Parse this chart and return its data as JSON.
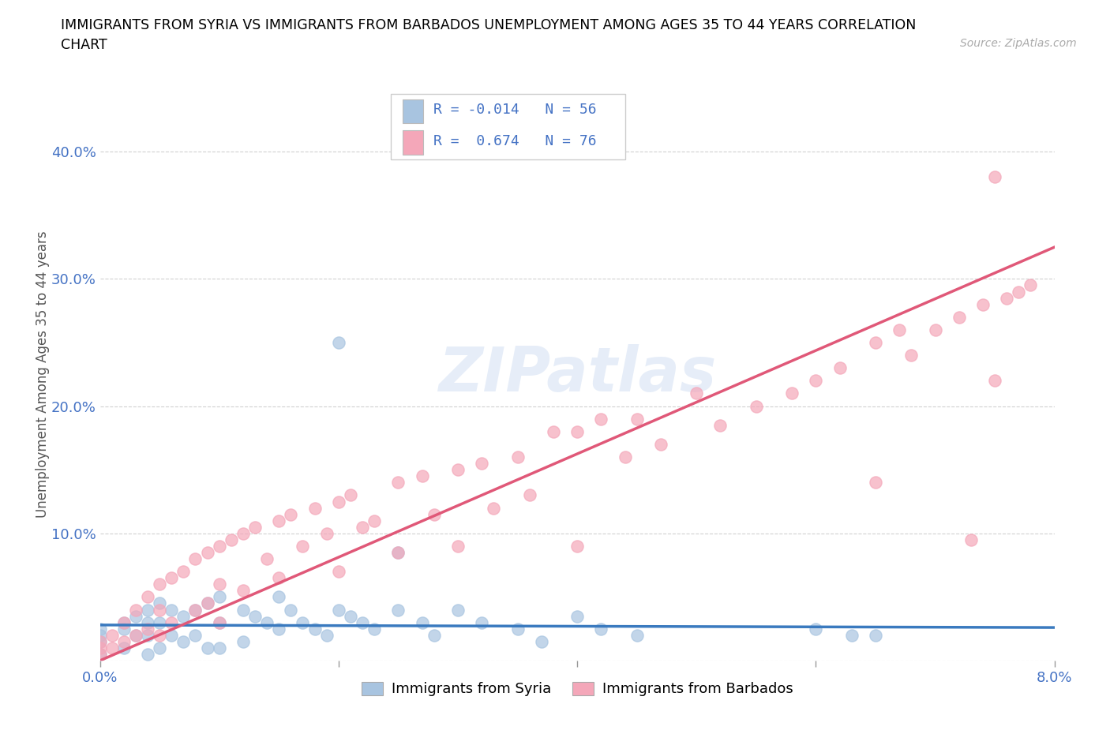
{
  "title_line1": "IMMIGRANTS FROM SYRIA VS IMMIGRANTS FROM BARBADOS UNEMPLOYMENT AMONG AGES 35 TO 44 YEARS CORRELATION",
  "title_line2": "CHART",
  "source": "Source: ZipAtlas.com",
  "ylabel": "Unemployment Among Ages 35 to 44 years",
  "xlim": [
    0.0,
    0.08
  ],
  "ylim": [
    0.0,
    0.45
  ],
  "syria_color": "#a8c4e0",
  "barbados_color": "#f4a7b9",
  "syria_line_color": "#3a7abf",
  "barbados_line_color": "#e05878",
  "syria_R": -0.014,
  "syria_N": 56,
  "barbados_R": 0.674,
  "barbados_N": 76,
  "watermark": "ZIPatlas",
  "legend_label_syria": "Immigrants from Syria",
  "legend_label_barbados": "Immigrants from Barbados",
  "background_color": "#ffffff",
  "grid_color": "#cccccc",
  "axis_color": "#4472c4",
  "title_color": "#000000",
  "barbados_line_y0": 0.0,
  "barbados_line_y1": 0.325,
  "syria_line_y0": 0.028,
  "syria_line_y1": 0.026,
  "syria_x": [
    0.0,
    0.0,
    0.0,
    0.0,
    0.002,
    0.002,
    0.002,
    0.003,
    0.003,
    0.004,
    0.004,
    0.004,
    0.004,
    0.005,
    0.005,
    0.005,
    0.006,
    0.006,
    0.007,
    0.007,
    0.008,
    0.008,
    0.009,
    0.009,
    0.01,
    0.01,
    0.01,
    0.012,
    0.012,
    0.013,
    0.014,
    0.015,
    0.015,
    0.016,
    0.017,
    0.018,
    0.019,
    0.02,
    0.02,
    0.021,
    0.022,
    0.023,
    0.025,
    0.025,
    0.027,
    0.028,
    0.03,
    0.032,
    0.035,
    0.037,
    0.04,
    0.042,
    0.045,
    0.06,
    0.063,
    0.065
  ],
  "syria_y": [
    0.025,
    0.02,
    0.015,
    0.005,
    0.03,
    0.025,
    0.01,
    0.035,
    0.02,
    0.04,
    0.03,
    0.02,
    0.005,
    0.045,
    0.03,
    0.01,
    0.04,
    0.02,
    0.035,
    0.015,
    0.04,
    0.02,
    0.045,
    0.01,
    0.05,
    0.03,
    0.01,
    0.04,
    0.015,
    0.035,
    0.03,
    0.05,
    0.025,
    0.04,
    0.03,
    0.025,
    0.02,
    0.25,
    0.04,
    0.035,
    0.03,
    0.025,
    0.085,
    0.04,
    0.03,
    0.02,
    0.04,
    0.03,
    0.025,
    0.015,
    0.035,
    0.025,
    0.02,
    0.025,
    0.02,
    0.02
  ],
  "barbados_x": [
    0.0,
    0.0,
    0.0,
    0.001,
    0.001,
    0.002,
    0.002,
    0.003,
    0.003,
    0.004,
    0.004,
    0.005,
    0.005,
    0.005,
    0.006,
    0.006,
    0.007,
    0.008,
    0.008,
    0.009,
    0.009,
    0.01,
    0.01,
    0.01,
    0.011,
    0.012,
    0.012,
    0.013,
    0.014,
    0.015,
    0.015,
    0.016,
    0.017,
    0.018,
    0.019,
    0.02,
    0.02,
    0.021,
    0.022,
    0.023,
    0.025,
    0.025,
    0.027,
    0.028,
    0.03,
    0.03,
    0.032,
    0.033,
    0.035,
    0.036,
    0.038,
    0.04,
    0.04,
    0.042,
    0.044,
    0.045,
    0.047,
    0.05,
    0.052,
    0.055,
    0.058,
    0.06,
    0.062,
    0.065,
    0.065,
    0.067,
    0.068,
    0.07,
    0.072,
    0.073,
    0.074,
    0.075,
    0.075,
    0.076,
    0.077,
    0.078
  ],
  "barbados_y": [
    0.015,
    0.01,
    0.005,
    0.02,
    0.01,
    0.03,
    0.015,
    0.04,
    0.02,
    0.05,
    0.025,
    0.06,
    0.04,
    0.02,
    0.065,
    0.03,
    0.07,
    0.08,
    0.04,
    0.085,
    0.045,
    0.09,
    0.06,
    0.03,
    0.095,
    0.1,
    0.055,
    0.105,
    0.08,
    0.11,
    0.065,
    0.115,
    0.09,
    0.12,
    0.1,
    0.125,
    0.07,
    0.13,
    0.105,
    0.11,
    0.14,
    0.085,
    0.145,
    0.115,
    0.15,
    0.09,
    0.155,
    0.12,
    0.16,
    0.13,
    0.18,
    0.09,
    0.18,
    0.19,
    0.16,
    0.19,
    0.17,
    0.21,
    0.185,
    0.2,
    0.21,
    0.22,
    0.23,
    0.25,
    0.14,
    0.26,
    0.24,
    0.26,
    0.27,
    0.095,
    0.28,
    0.38,
    0.22,
    0.285,
    0.29,
    0.295
  ]
}
